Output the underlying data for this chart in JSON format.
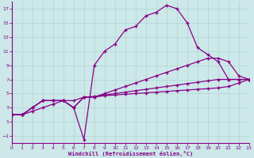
{
  "background_color": "#cce8e8",
  "grid_color": "#b0d4d4",
  "line_color": "#880088",
  "xlabel": "Windchill (Refroidissement éolien,°C)",
  "xlim": [
    0,
    23
  ],
  "ylim": [
    -2,
    18
  ],
  "xtick_vals": [
    0,
    1,
    2,
    3,
    4,
    5,
    6,
    7,
    8,
    9,
    10,
    11,
    12,
    13,
    14,
    15,
    16,
    17,
    18,
    19,
    20,
    21,
    22,
    23
  ],
  "ytick_vals": [
    -1,
    1,
    3,
    5,
    7,
    9,
    11,
    13,
    15,
    17
  ],
  "s1_x": [
    0,
    1,
    2,
    3,
    4,
    5,
    6,
    7,
    8,
    9,
    10,
    11,
    12,
    13,
    14,
    15,
    16,
    17,
    18,
    19,
    20,
    21,
    22,
    23
  ],
  "s1_y": [
    2,
    2,
    3,
    4,
    4,
    4,
    3,
    -1.5,
    9,
    11,
    12,
    14,
    14.5,
    16,
    16.5,
    17.5,
    17,
    15,
    11.5,
    10.5,
    9.5,
    7,
    7,
    7
  ],
  "s2_x": [
    0,
    1,
    2,
    3,
    4,
    5,
    6,
    7,
    8,
    9,
    10,
    11,
    12,
    13,
    14,
    15,
    16,
    17,
    18,
    19,
    20,
    21,
    22,
    23
  ],
  "s2_y": [
    2,
    2,
    3,
    4,
    4,
    4,
    3,
    4.5,
    4.5,
    5,
    5.5,
    6,
    6.5,
    7,
    7.5,
    8,
    8.5,
    9,
    9.5,
    10,
    10,
    9.5,
    7.5,
    7
  ],
  "s3_x": [
    0,
    1,
    2,
    3,
    4,
    5,
    6,
    7,
    8,
    9,
    10,
    11,
    12,
    13,
    14,
    15,
    16,
    17,
    18,
    19,
    20,
    21,
    22,
    23
  ],
  "s3_y": [
    2,
    2,
    3,
    4,
    4,
    4,
    3,
    4.5,
    4.6,
    4.8,
    5.0,
    5.2,
    5.4,
    5.6,
    5.8,
    6.0,
    6.2,
    6.4,
    6.6,
    6.8,
    7.0,
    7.0,
    7.0,
    7.0
  ],
  "s4_x": [
    0,
    1,
    2,
    3,
    4,
    5,
    6,
    7,
    8,
    9,
    10,
    11,
    12,
    13,
    14,
    15,
    16,
    17,
    18,
    19,
    20,
    21,
    22,
    23
  ],
  "s4_y": [
    2,
    2,
    2.5,
    3,
    3.5,
    4,
    4,
    4.5,
    4.5,
    4.7,
    4.8,
    4.9,
    5.0,
    5.1,
    5.2,
    5.3,
    5.4,
    5.5,
    5.6,
    5.7,
    5.8,
    6.0,
    6.5,
    7.0
  ]
}
